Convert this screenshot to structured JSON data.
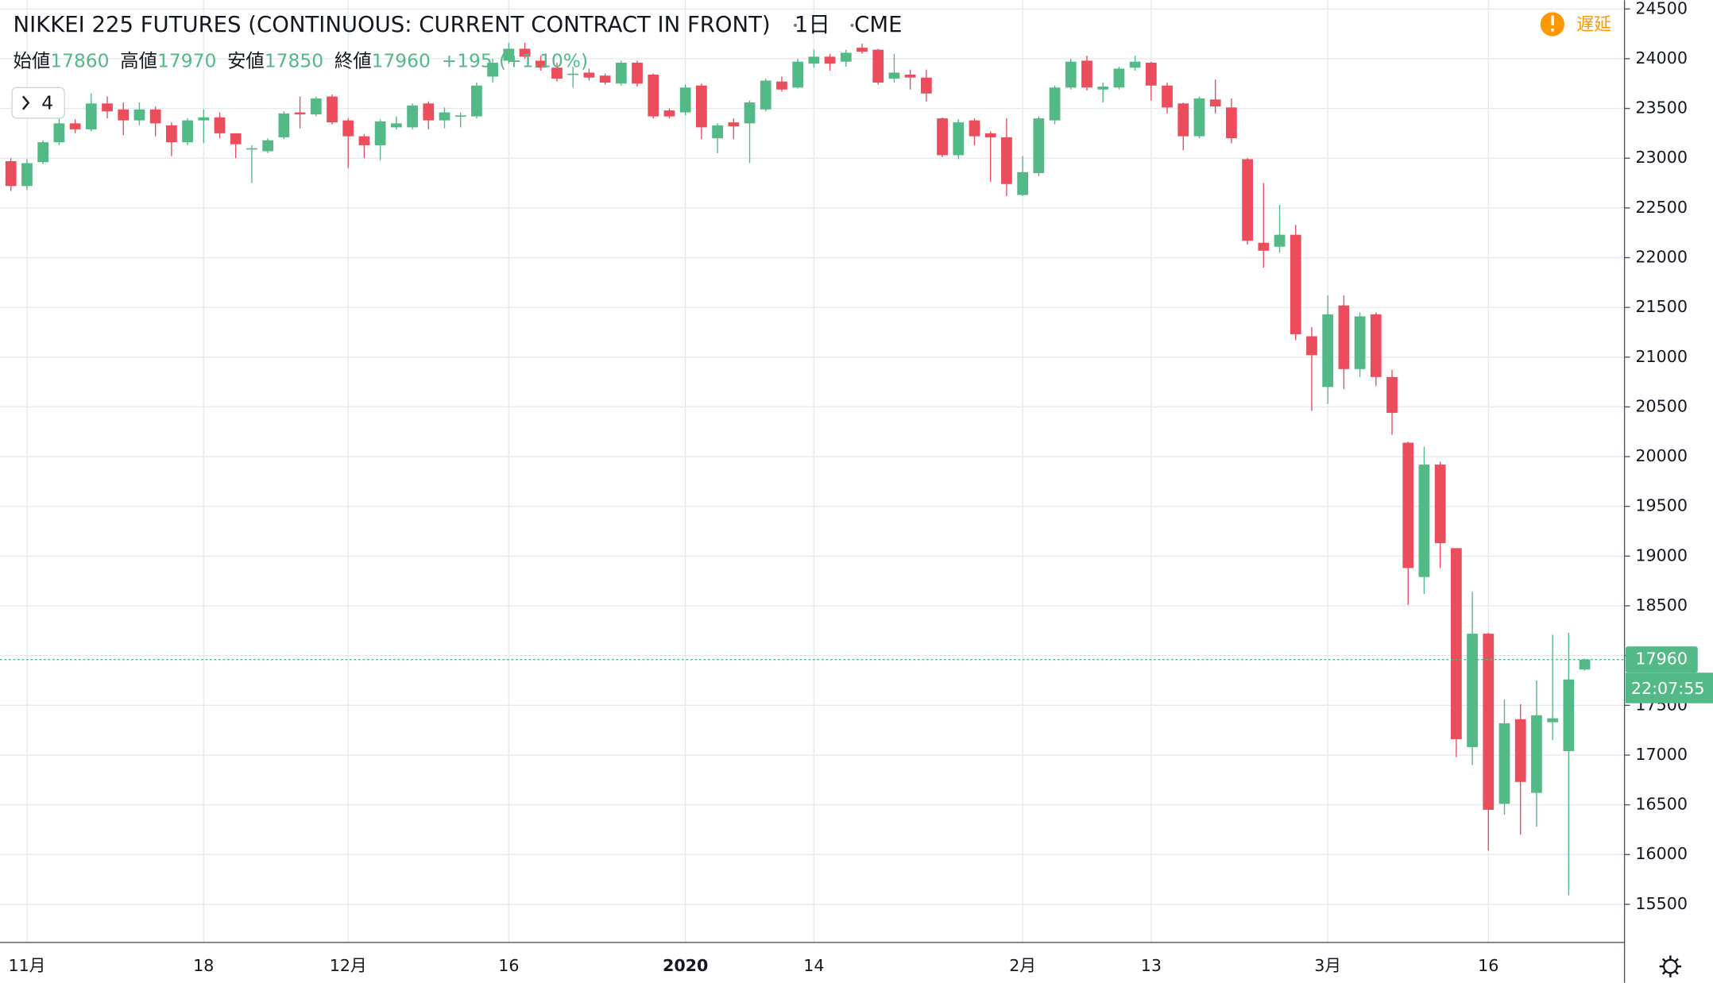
{
  "chart_data": {
    "type": "candlestick",
    "title": "NIKKEI 225 FUTURES (CONTINUOUS: CURRENT CONTRACT IN FRONT)",
    "interval": "1日",
    "exchange": "CME",
    "status": "遅延",
    "indicator_count": "4",
    "labels": {
      "open": "始値",
      "high": "高値",
      "low": "安値",
      "close": "終値"
    },
    "change": "+195",
    "change_pct": "(+1.10%)",
    "countdown": "22:07:55",
    "up_color": "#53b987",
    "down_color": "#eb4d5c",
    "grid": true,
    "ylim": [
      15117,
      24588
    ],
    "yticks": [
      15500,
      16000,
      16500,
      17000,
      17500,
      18000,
      18500,
      19000,
      19500,
      20000,
      20500,
      21000,
      21500,
      22000,
      22500,
      23000,
      23500,
      24000,
      24500
    ],
    "categories": [
      null,
      "11月",
      null,
      null,
      null,
      null,
      null,
      null,
      null,
      null,
      null,
      null,
      "18",
      null,
      null,
      null,
      null,
      null,
      null,
      null,
      null,
      "12月",
      null,
      null,
      null,
      null,
      null,
      null,
      null,
      null,
      null,
      "16",
      null,
      null,
      null,
      null,
      null,
      null,
      null,
      null,
      null,
      null,
      "2020",
      null,
      null,
      null,
      null,
      null,
      null,
      null,
      "14",
      null,
      null,
      null,
      null,
      null,
      null,
      null,
      null,
      null,
      null,
      null,
      null,
      "2月",
      null,
      null,
      null,
      null,
      null,
      null,
      null,
      "13",
      null,
      null,
      null,
      null,
      null,
      null,
      null,
      null,
      null,
      null,
      "3月",
      null,
      null,
      null,
      null,
      null,
      null,
      null,
      null,
      null,
      "16",
      null,
      null,
      null,
      null,
      null,
      null
    ],
    "open": [
      22970,
      22720,
      22960,
      23160,
      23350,
      23290,
      23550,
      23490,
      23380,
      23490,
      23330,
      23160,
      23380,
      23410,
      23250,
      23090,
      23070,
      23210,
      23460,
      23440,
      23620,
      23380,
      23220,
      23130,
      23310,
      23310,
      23550,
      23380,
      23420,
      23420,
      23820,
      23980,
      24100,
      23980,
      23910,
      23840,
      23860,
      23830,
      23750,
      23960,
      23840,
      23480,
      23460,
      23730,
      23200,
      23360,
      23350,
      23490,
      23770,
      23710,
      23950,
      24020,
      23970,
      24110,
      24090,
      23800,
      23840,
      23810,
      23400,
      23030,
      23380,
      23250,
      23210,
      22630,
      22850,
      23380,
      23710,
      23980,
      23690,
      23710,
      23910,
      23960,
      23730,
      23550,
      23220,
      23590,
      23510,
      22990,
      22150,
      22110,
      22230,
      21210,
      20700,
      21520,
      20880,
      21430,
      20800,
      20140,
      18790,
      19920,
      19080,
      17080,
      18220,
      16510,
      17360,
      16620,
      17330,
      17040,
      17860
    ],
    "high": [
      23000,
      22990,
      23180,
      23400,
      23390,
      23650,
      23620,
      23560,
      23560,
      23520,
      23360,
      23400,
      23490,
      23460,
      23250,
      23130,
      23200,
      23470,
      23620,
      23620,
      23640,
      23400,
      23240,
      23390,
      23420,
      23550,
      23570,
      23510,
      23460,
      23760,
      24000,
      24160,
      24160,
      24030,
      23960,
      23920,
      23900,
      23850,
      23980,
      23980,
      23850,
      23500,
      23740,
      23750,
      23350,
      23400,
      23580,
      23800,
      23820,
      24000,
      24090,
      24050,
      24090,
      24150,
      24100,
      24050,
      23890,
      23890,
      23410,
      23390,
      23400,
      23270,
      23400,
      23020,
      23420,
      23730,
      24000,
      24030,
      23760,
      23920,
      24030,
      23970,
      23760,
      23560,
      23620,
      23790,
      23600,
      23000,
      22750,
      22530,
      22330,
      21300,
      21620,
      21620,
      21450,
      21450,
      20870,
      20150,
      20100,
      19950,
      19080,
      18640,
      18230,
      17560,
      17510,
      17750,
      18210,
      18230,
      17970
    ],
    "low": [
      22670,
      22680,
      22940,
      23130,
      23250,
      23270,
      23400,
      23230,
      23330,
      23220,
      23020,
      23130,
      23150,
      23200,
      23000,
      22750,
      23050,
      23190,
      23300,
      23420,
      23340,
      22900,
      23000,
      22980,
      23290,
      23290,
      23290,
      23300,
      23310,
      23400,
      23760,
      23950,
      24000,
      23880,
      23770,
      23710,
      23780,
      23740,
      23730,
      23720,
      23400,
      23400,
      23430,
      23190,
      23050,
      23190,
      22950,
      23470,
      23670,
      23700,
      23910,
      23880,
      23920,
      24050,
      23740,
      23760,
      23690,
      23570,
      23010,
      22990,
      23130,
      22760,
      22620,
      22620,
      22820,
      23340,
      23690,
      23680,
      23560,
      23690,
      23880,
      23580,
      23450,
      23080,
      23200,
      23450,
      23150,
      22130,
      21900,
      22050,
      21170,
      20460,
      20530,
      20680,
      20800,
      20710,
      20220,
      18510,
      18620,
      18880,
      16980,
      16900,
      16040,
      16400,
      16200,
      16280,
      17150,
      15590,
      17850
    ],
    "close": [
      22720,
      22950,
      23160,
      23350,
      23290,
      23550,
      23470,
      23380,
      23490,
      23350,
      23160,
      23380,
      23410,
      23250,
      23140,
      23100,
      23180,
      23450,
      23440,
      23600,
      23360,
      23220,
      23130,
      23370,
      23350,
      23530,
      23380,
      23460,
      23430,
      23730,
      23960,
      24100,
      24020,
      23910,
      23800,
      23850,
      23810,
      23760,
      23960,
      23750,
      23420,
      23420,
      23710,
      23310,
      23330,
      23320,
      23560,
      23780,
      23690,
      23970,
      24020,
      23950,
      24060,
      24070,
      23760,
      23860,
      23810,
      23650,
      23030,
      23360,
      23220,
      23210,
      22740,
      22860,
      23400,
      23710,
      23970,
      23710,
      23720,
      23900,
      23970,
      23730,
      23510,
      23220,
      23600,
      23520,
      23200,
      22170,
      22070,
      22230,
      21230,
      21020,
      21430,
      20880,
      21410,
      20800,
      20440,
      18880,
      19920,
      19130,
      17160,
      18220,
      16450,
      17320,
      16730,
      17400,
      17370,
      17760,
      17960
    ]
  }
}
